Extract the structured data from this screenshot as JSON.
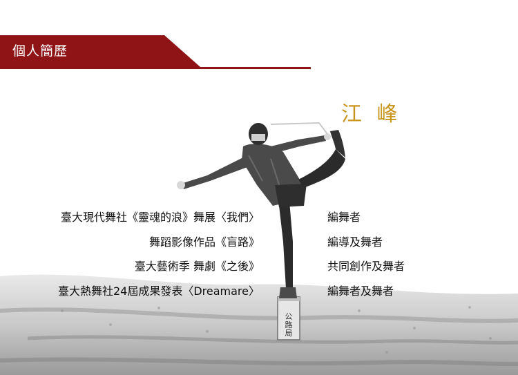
{
  "section": {
    "title": "個人簡歷"
  },
  "profile": {
    "name": "江 峰"
  },
  "colors": {
    "banner": "#8e1416",
    "name": "#c8961e",
    "text": "#111111"
  },
  "bio": [
    {
      "work": "臺大現代舞社《靈魂的浪》舞展〈我們〉",
      "role": "編舞者"
    },
    {
      "work": "舞蹈影像作品《盲路》",
      "role": "編導及舞者"
    },
    {
      "work": "臺大藝術季 舞劇《之後》",
      "role": "共同創作及舞者"
    },
    {
      "work": "臺大熱舞社24屆成果發表〈Dreamare〉",
      "role": "編舞者及舞者"
    }
  ],
  "photo": {
    "marker_text": "公路局"
  }
}
